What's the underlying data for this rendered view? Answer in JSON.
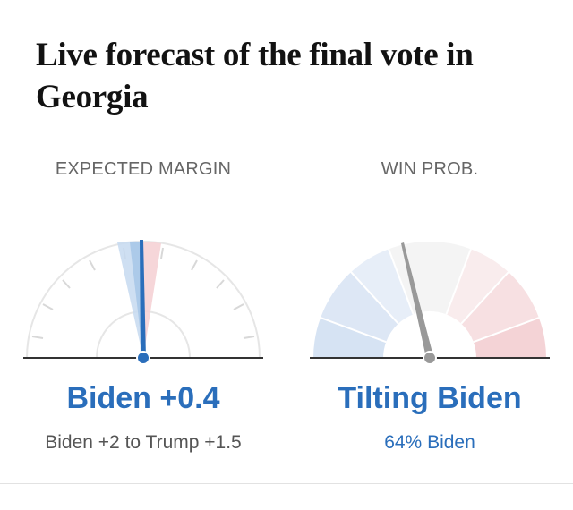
{
  "title": "Live forecast of the final vote in Georgia",
  "margin_panel": {
    "label": "EXPECTED MARGIN",
    "value": "Biden +0.4",
    "range": "Biden +2 to Trump +1.5",
    "needle_margin": 0.4
  },
  "probability_panel": {
    "label": "WIN PROB.",
    "value": "Tilting Biden",
    "detail": "64% Biden",
    "biden_probability": 0.64
  },
  "colors": {
    "accent_blue": "#2a6ebb",
    "needle_gray": "#999999",
    "band_light_blue": "#c5d9f0",
    "band_light_red": "#f5cfd2"
  }
}
